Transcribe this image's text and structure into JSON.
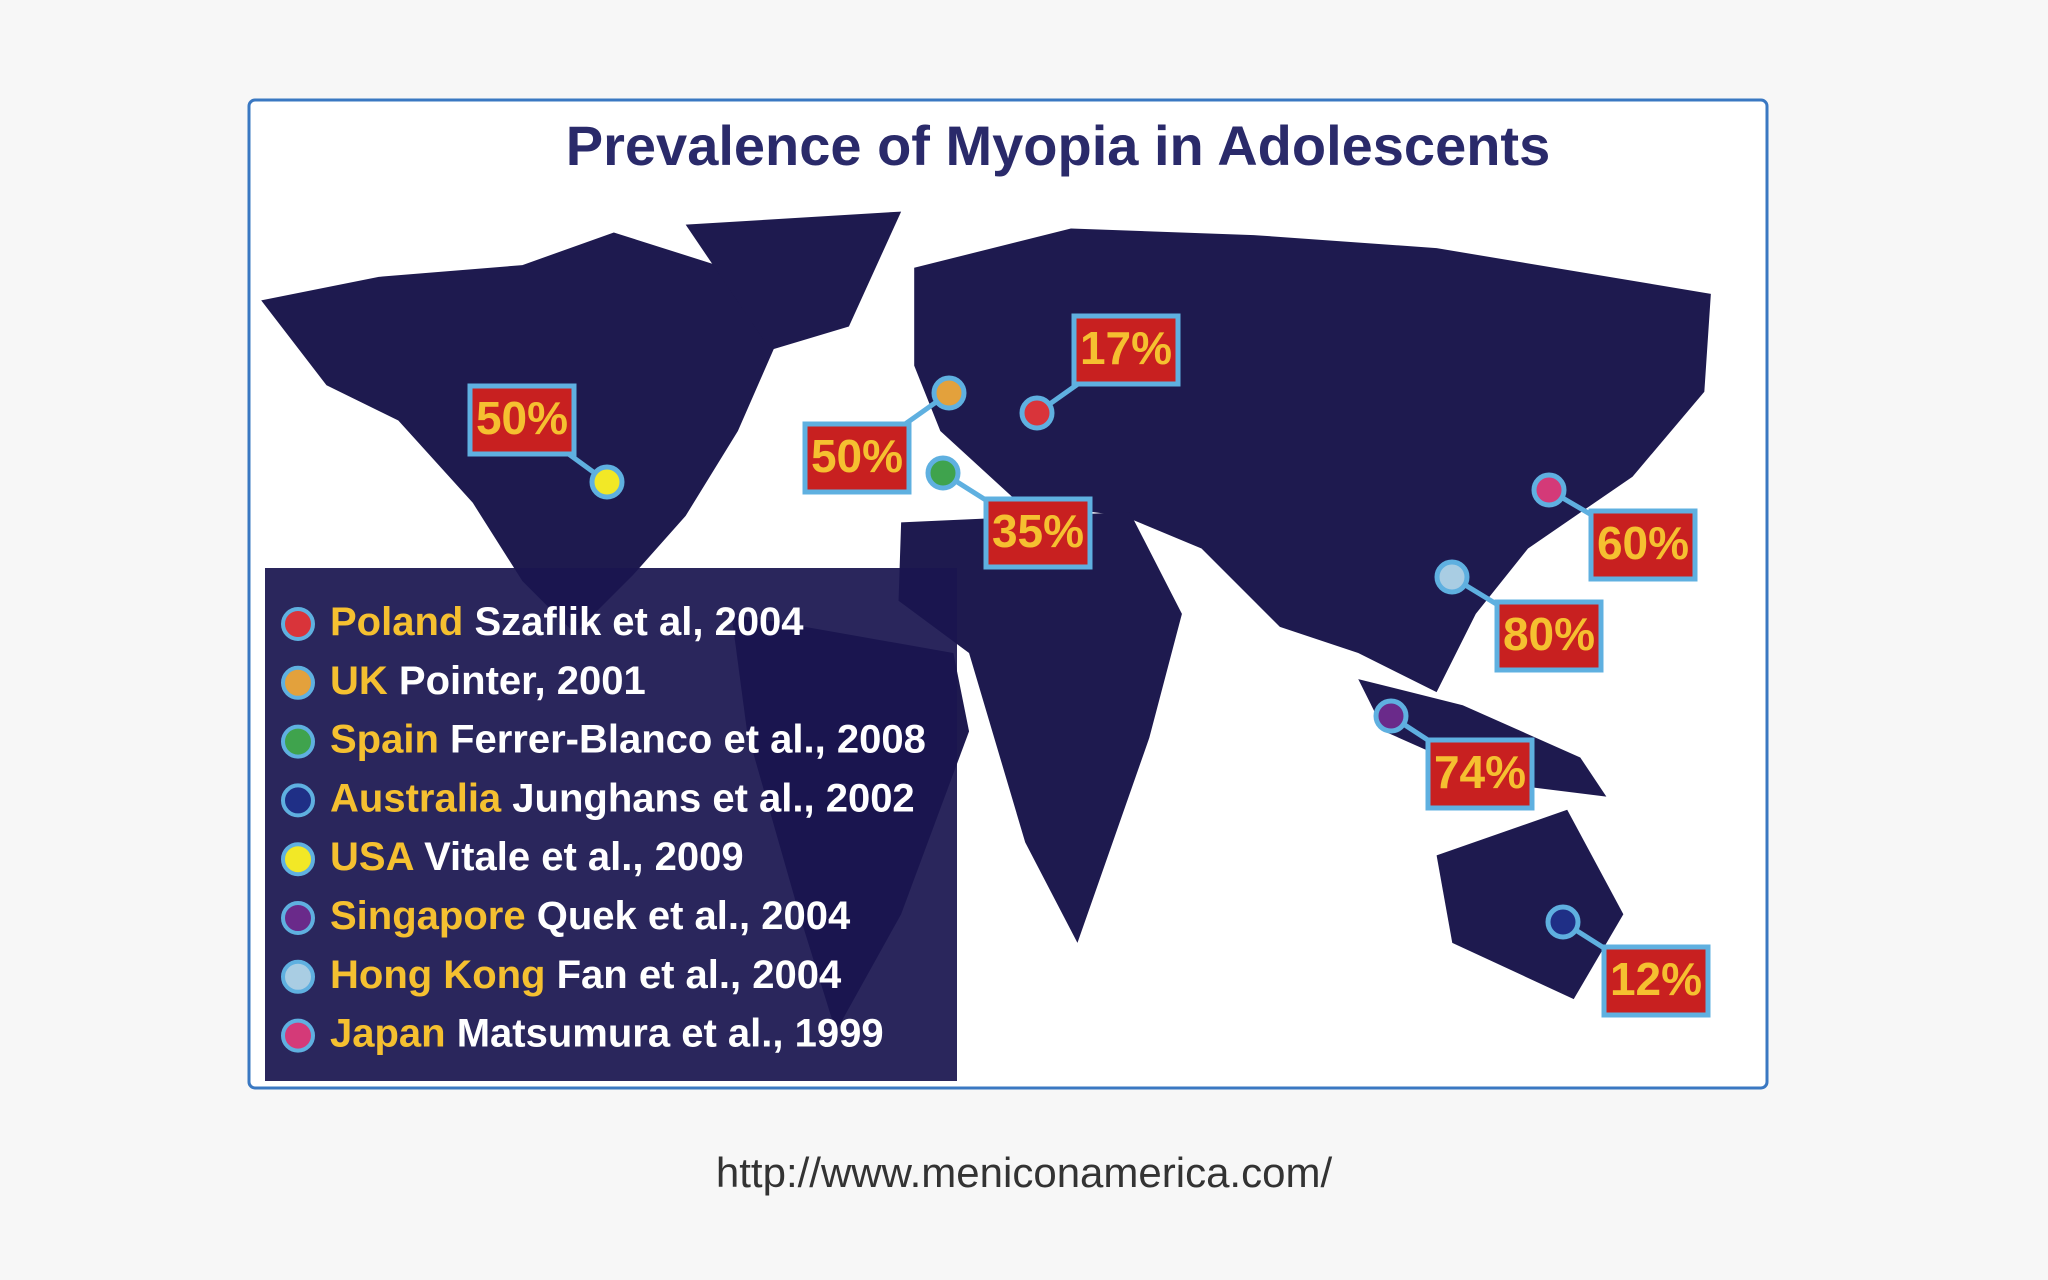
{
  "title": "Prevalence of Myopia in Adolescents",
  "legend": [
    {
      "country": "Poland",
      "citation": "Szaflik et al, 2004",
      "color": "#d9343a"
    },
    {
      "country": "UK",
      "citation": "Pointer, 2001",
      "color": "#e3a13c"
    },
    {
      "country": "Spain",
      "citation": "Ferrer-Blanco et al., 2008",
      "color": "#3fa34d"
    },
    {
      "country": "Australia",
      "citation": "Junghans et al., 2002",
      "color": "#1f2f86"
    },
    {
      "country": "USA",
      "citation": "Vitale et al., 2009",
      "color": "#f2e826"
    },
    {
      "country": "Singapore",
      "citation": "Quek et al., 2004",
      "color": "#6a2a8a"
    },
    {
      "country": "Hong Kong",
      "citation": "Fan et al., 2004",
      "color": "#a9cde3"
    },
    {
      "country": "Japan",
      "citation": "Matsumura et al., 1999",
      "color": "#d43a78"
    }
  ],
  "markers": [
    "17%",
    "50%",
    "35%",
    "12%",
    "50%",
    "74%",
    "80%",
    "60%"
  ],
  "url": "http://www.meniconamerica.com/"
}
